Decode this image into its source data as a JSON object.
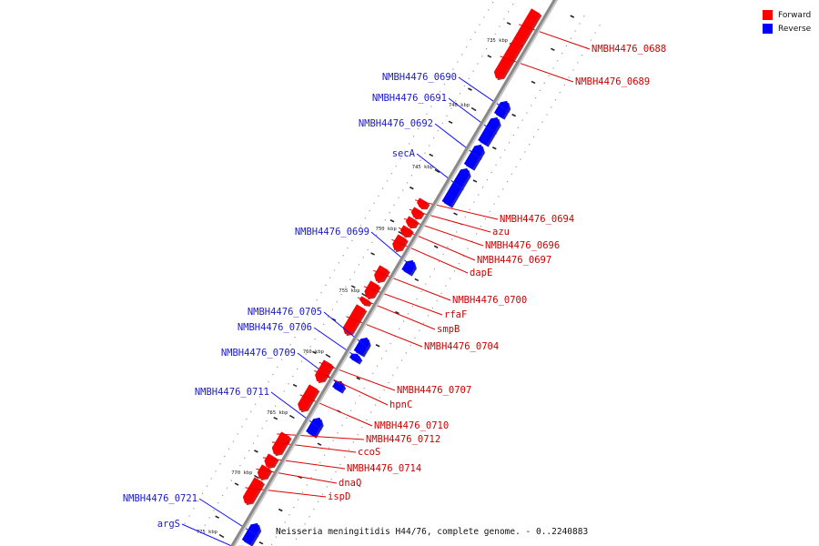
{
  "legend": {
    "forward": {
      "label": "Forward",
      "color": "#ff0000"
    },
    "reverse": {
      "label": "Reverse",
      "color": "#0000ff"
    }
  },
  "colors": {
    "axis": "#8a8a8a",
    "leader": "#e00000"
  },
  "caption": "Neisseria meningitidis H44/76, complete genome. - 0..2240883",
  "ticks": [
    "735 kbp",
    "740 kbp",
    "745 kbp",
    "750 kbp",
    "755 kbp",
    "760 kbp",
    "765 kbp",
    "770 kbp",
    "775 kbp"
  ],
  "genes": [
    {
      "label": "NMBH4476_0688",
      "strand": "forward"
    },
    {
      "label": "NMBH4476_0689",
      "strand": "forward"
    },
    {
      "label": "NMBH4476_0690",
      "strand": "reverse"
    },
    {
      "label": "NMBH4476_0691",
      "strand": "reverse"
    },
    {
      "label": "NMBH4476_0692",
      "strand": "reverse"
    },
    {
      "label": "secA",
      "strand": "reverse"
    },
    {
      "label": "NMBH4476_0694",
      "strand": "forward"
    },
    {
      "label": "azu",
      "strand": "forward"
    },
    {
      "label": "NMBH4476_0696",
      "strand": "forward"
    },
    {
      "label": "NMBH4476_0697",
      "strand": "forward"
    },
    {
      "label": "dapE",
      "strand": "forward"
    },
    {
      "label": "NMBH4476_0699",
      "strand": "reverse"
    },
    {
      "label": "NMBH4476_0700",
      "strand": "forward"
    },
    {
      "label": "rfaF",
      "strand": "forward"
    },
    {
      "label": "smpB",
      "strand": "forward"
    },
    {
      "label": "NMBH4476_0704",
      "strand": "forward"
    },
    {
      "label": "NMBH4476_0705",
      "strand": "reverse"
    },
    {
      "label": "NMBH4476_0706",
      "strand": "reverse"
    },
    {
      "label": "NMBH4476_0707",
      "strand": "forward"
    },
    {
      "label": "NMBH4476_0709",
      "strand": "reverse"
    },
    {
      "label": "hpnC",
      "strand": "forward"
    },
    {
      "label": "NMBH4476_0710",
      "strand": "forward"
    },
    {
      "label": "NMBH4476_0711",
      "strand": "reverse"
    },
    {
      "label": "NMBH4476_0712",
      "strand": "forward"
    },
    {
      "label": "ccoS",
      "strand": "forward"
    },
    {
      "label": "NMBH4476_0714",
      "strand": "forward"
    },
    {
      "label": "dnaQ",
      "strand": "forward"
    },
    {
      "label": "ispD",
      "strand": "forward"
    },
    {
      "label": "NMBH4476_0721",
      "strand": "reverse"
    },
    {
      "label": "argS",
      "strand": "reverse"
    }
  ]
}
